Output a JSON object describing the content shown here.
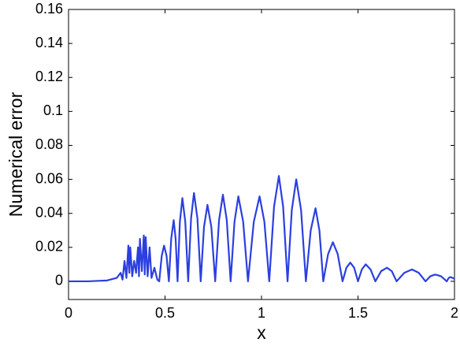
{
  "chart_data": {
    "type": "line",
    "xlabel": "x",
    "ylabel": "Numerical error",
    "color": "#2b3fe0",
    "x": [
      0,
      0.1,
      0.2,
      0.25,
      0.27,
      0.28,
      0.29,
      0.3,
      0.31,
      0.315,
      0.32,
      0.33,
      0.34,
      0.35,
      0.36,
      0.365,
      0.37,
      0.38,
      0.39,
      0.395,
      0.4,
      0.41,
      0.42,
      0.43,
      0.445,
      0.46,
      0.47,
      0.483,
      0.495,
      0.508,
      0.52,
      0.532,
      0.545,
      0.555,
      0.565,
      0.577,
      0.59,
      0.605,
      0.62,
      0.635,
      0.65,
      0.668,
      0.685,
      0.702,
      0.72,
      0.74,
      0.76,
      0.78,
      0.8,
      0.82,
      0.84,
      0.86,
      0.88,
      0.905,
      0.93,
      0.96,
      0.99,
      1.015,
      1.04,
      1.065,
      1.09,
      1.112,
      1.135,
      1.157,
      1.18,
      1.205,
      1.23,
      1.255,
      1.28,
      1.3,
      1.32,
      1.345,
      1.37,
      1.395,
      1.42,
      1.44,
      1.46,
      1.48,
      1.5,
      1.52,
      1.54,
      1.565,
      1.59,
      1.62,
      1.65,
      1.675,
      1.7,
      1.74,
      1.78,
      1.815,
      1.85,
      1.875,
      1.9,
      1.93,
      1.96,
      1.97,
      1.98,
      2.0
    ],
    "values": [
      0,
      0,
      0.0005,
      0.002,
      0.005,
      0.001,
      0.012,
      0.002,
      0.021,
      0.005,
      0.02,
      0.003,
      0.012,
      0.005,
      0.02,
      0.003,
      0.025,
      0.006,
      0.027,
      0.004,
      0.026,
      0.003,
      0.02,
      0.002,
      0.008,
      0.001,
      0,
      0.015,
      0.021,
      0.015,
      0,
      0.025,
      0.036,
      0.025,
      0,
      0.035,
      0.049,
      0.035,
      0,
      0.037,
      0.052,
      0.037,
      0,
      0.032,
      0.045,
      0.032,
      0,
      0.036,
      0.051,
      0.036,
      0,
      0.035,
      0.05,
      0.035,
      0,
      0.035,
      0.05,
      0.035,
      0,
      0.044,
      0.062,
      0.044,
      0,
      0.042,
      0.06,
      0.042,
      0,
      0.03,
      0.043,
      0.03,
      0,
      0.016,
      0.023,
      0.016,
      0,
      0.008,
      0.011,
      0.008,
      0,
      0.007,
      0.01,
      0.007,
      0,
      0.006,
      0.008,
      0.006,
      0,
      0.005,
      0.007,
      0.005,
      0,
      0.003,
      0.004,
      0.003,
      0,
      0.002,
      0.0025,
      0.0015
    ],
    "xlim": [
      0,
      2
    ],
    "xticks": [
      0,
      0.5,
      1,
      1.5,
      2
    ],
    "ylim": [
      -0.0107,
      0.16
    ],
    "yticks": [
      0,
      0.02,
      0.04,
      0.06,
      0.08,
      0.1,
      0.12,
      0.14,
      0.16
    ]
  }
}
